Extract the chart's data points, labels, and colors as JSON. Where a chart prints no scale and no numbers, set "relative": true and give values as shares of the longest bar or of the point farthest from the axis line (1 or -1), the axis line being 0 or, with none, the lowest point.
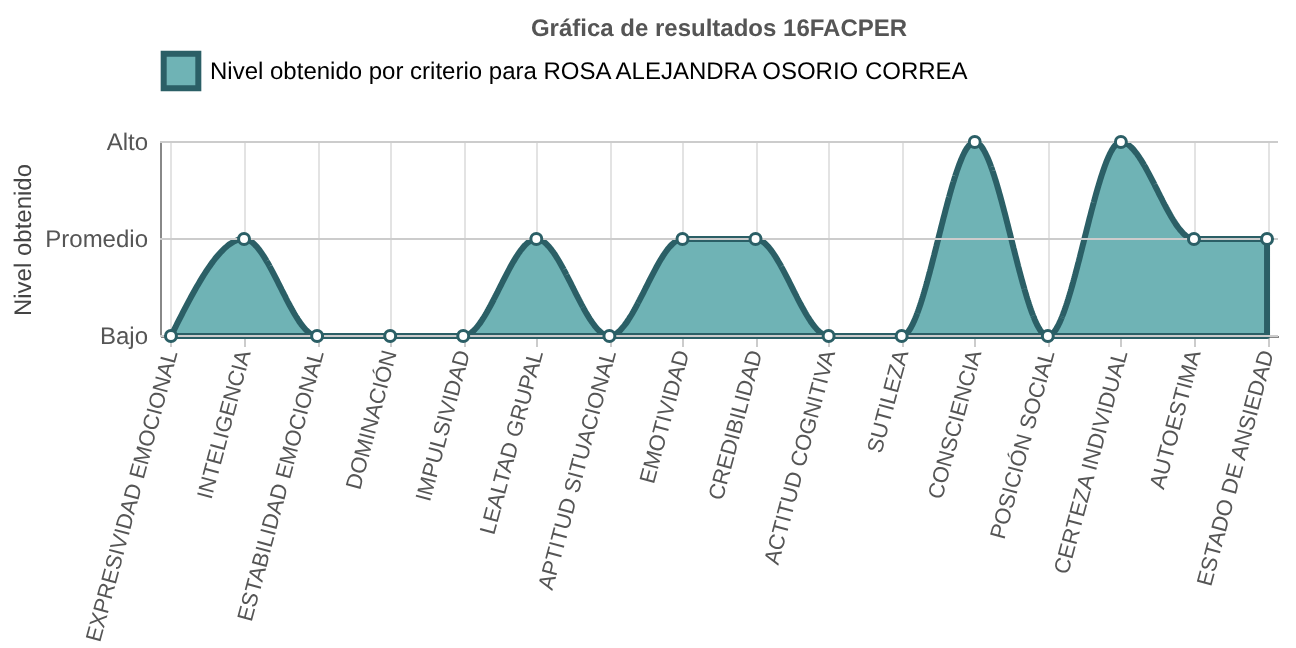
{
  "chart_data": {
    "type": "area",
    "title": "Gráfica de resultados 16FACPER",
    "ylabel": "Nivel obtenido",
    "categories": [
      "EXPRESIVIDAD EMOCIONAL",
      "INTELIGENCIA",
      "ESTABILIDAD EMOCIONAL",
      "DOMINACIÓN",
      "IMPULSIVIDAD",
      "LEALTAD GRUPAL",
      "APTITUD SITUACIONAL",
      "EMOTIVIDAD",
      "CREDIBILIDAD",
      "ACTITUD COGNITIVA",
      "SUTILEZA",
      "CONSCIENCIA",
      "POSICIÓN SOCIAL",
      "CERTEZA INDIVIDUAL",
      "AUTOESTIMA",
      "ESTADO DE ANSIEDAD"
    ],
    "series": [
      {
        "name": "Nivel obtenido por criterio para ROSA ALEJANDRA OSORIO CORREA",
        "color": "#6fb3b5",
        "values": [
          0,
          0.5,
          0,
          0,
          0,
          0.5,
          0,
          0.5,
          0.5,
          0,
          0,
          1,
          0,
          1,
          0.5,
          0.5
        ]
      }
    ],
    "relative": true,
    "ref_lines": [
      {
        "axis": "y",
        "value": 0,
        "label": "Bajo",
        "color": "#cccccc"
      },
      {
        "axis": "y",
        "value": 0.5,
        "label": "Promedio",
        "color": "#cccccc"
      },
      {
        "axis": "y",
        "value": 1,
        "label": "Alto",
        "color": "#cccccc"
      }
    ],
    "grid": "x",
    "legend": "top",
    "marker": "circle",
    "line_style": "solid"
  }
}
